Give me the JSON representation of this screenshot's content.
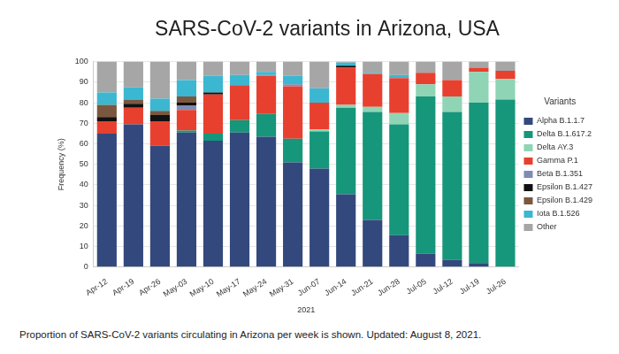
{
  "chart_data": {
    "type": "bar",
    "title": "SARS-CoV-2 variants in Arizona, USA",
    "x_label": "2021",
    "y_label": "Frequency (%)",
    "legend_title": "Variants",
    "caption": "Proportion of SARS-CoV-2 variants circulating in Arizona per week is shown. Updated: August 8, 2021.",
    "categories": [
      "Apr-12",
      "Apr-19",
      "Apr-26",
      "May-03",
      "May-10",
      "May-17",
      "May-24",
      "May-31",
      "Jun-07",
      "Jun-14",
      "Jun-21",
      "Jun-28",
      "Jul-05",
      "Jul-12",
      "Jul-19",
      "Jul-26"
    ],
    "series": [
      {
        "name": "Alpha B.1.1.7",
        "color": "#33497d",
        "values": [
          65,
          69.5,
          59,
          65.5,
          61.5,
          65.5,
          63.5,
          51,
          48,
          35.5,
          23,
          15.5,
          6.5,
          3.5,
          2,
          0
        ]
      },
      {
        "name": "Delta B.1.617.2",
        "color": "#16967a",
        "values": [
          0,
          0,
          0,
          1,
          3.5,
          6,
          11,
          11.5,
          18,
          42,
          52.5,
          54,
          76.5,
          72,
          78,
          81.5
        ]
      },
      {
        "name": "Delta AY.3",
        "color": "#8fd4b5",
        "values": [
          0,
          0,
          0,
          0,
          0,
          0,
          0,
          0,
          1,
          1.5,
          2.5,
          5.5,
          6,
          7.5,
          15,
          10
        ]
      },
      {
        "name": "Gamma P.1",
        "color": "#e8402f",
        "values": [
          6,
          8,
          12,
          10,
          19,
          17,
          18.5,
          25.5,
          13,
          18,
          16,
          17,
          5.5,
          8,
          2,
          4
        ]
      },
      {
        "name": "Beta B.1.351",
        "color": "#7e8cb5",
        "values": [
          0,
          0,
          0,
          2,
          0,
          0,
          0.5,
          1,
          0,
          0,
          0,
          0,
          0,
          0,
          0,
          0
        ]
      },
      {
        "name": "Epsilon B.1.427",
        "color": "#111111",
        "values": [
          2,
          2,
          3,
          1.5,
          1,
          0,
          0,
          0,
          0,
          1,
          0,
          0,
          0,
          0,
          0,
          0
        ]
      },
      {
        "name": "Epsilon B.1.429",
        "color": "#7a5840",
        "values": [
          6,
          2,
          2,
          3,
          0,
          0,
          0,
          0,
          0,
          0,
          0,
          0,
          0,
          0,
          0,
          0
        ]
      },
      {
        "name": "Iota B.1.526",
        "color": "#3bb7d1",
        "values": [
          6,
          6,
          6,
          8,
          8,
          5,
          1.5,
          4,
          7,
          1.5,
          0.5,
          1.5,
          0,
          0,
          0,
          0
        ]
      },
      {
        "name": "Other",
        "color": "#a6a6a6",
        "values": [
          15,
          12.5,
          18,
          9,
          7,
          6.5,
          5,
          7,
          13,
          0.5,
          5.5,
          6.5,
          5.5,
          9,
          3,
          4.5
        ]
      }
    ],
    "stacked": true,
    "ylim": [
      0,
      100
    ],
    "yticks": [
      0,
      10,
      20,
      30,
      40,
      50,
      60,
      70,
      80,
      90,
      100
    ],
    "grid": true,
    "legend": "right"
  }
}
